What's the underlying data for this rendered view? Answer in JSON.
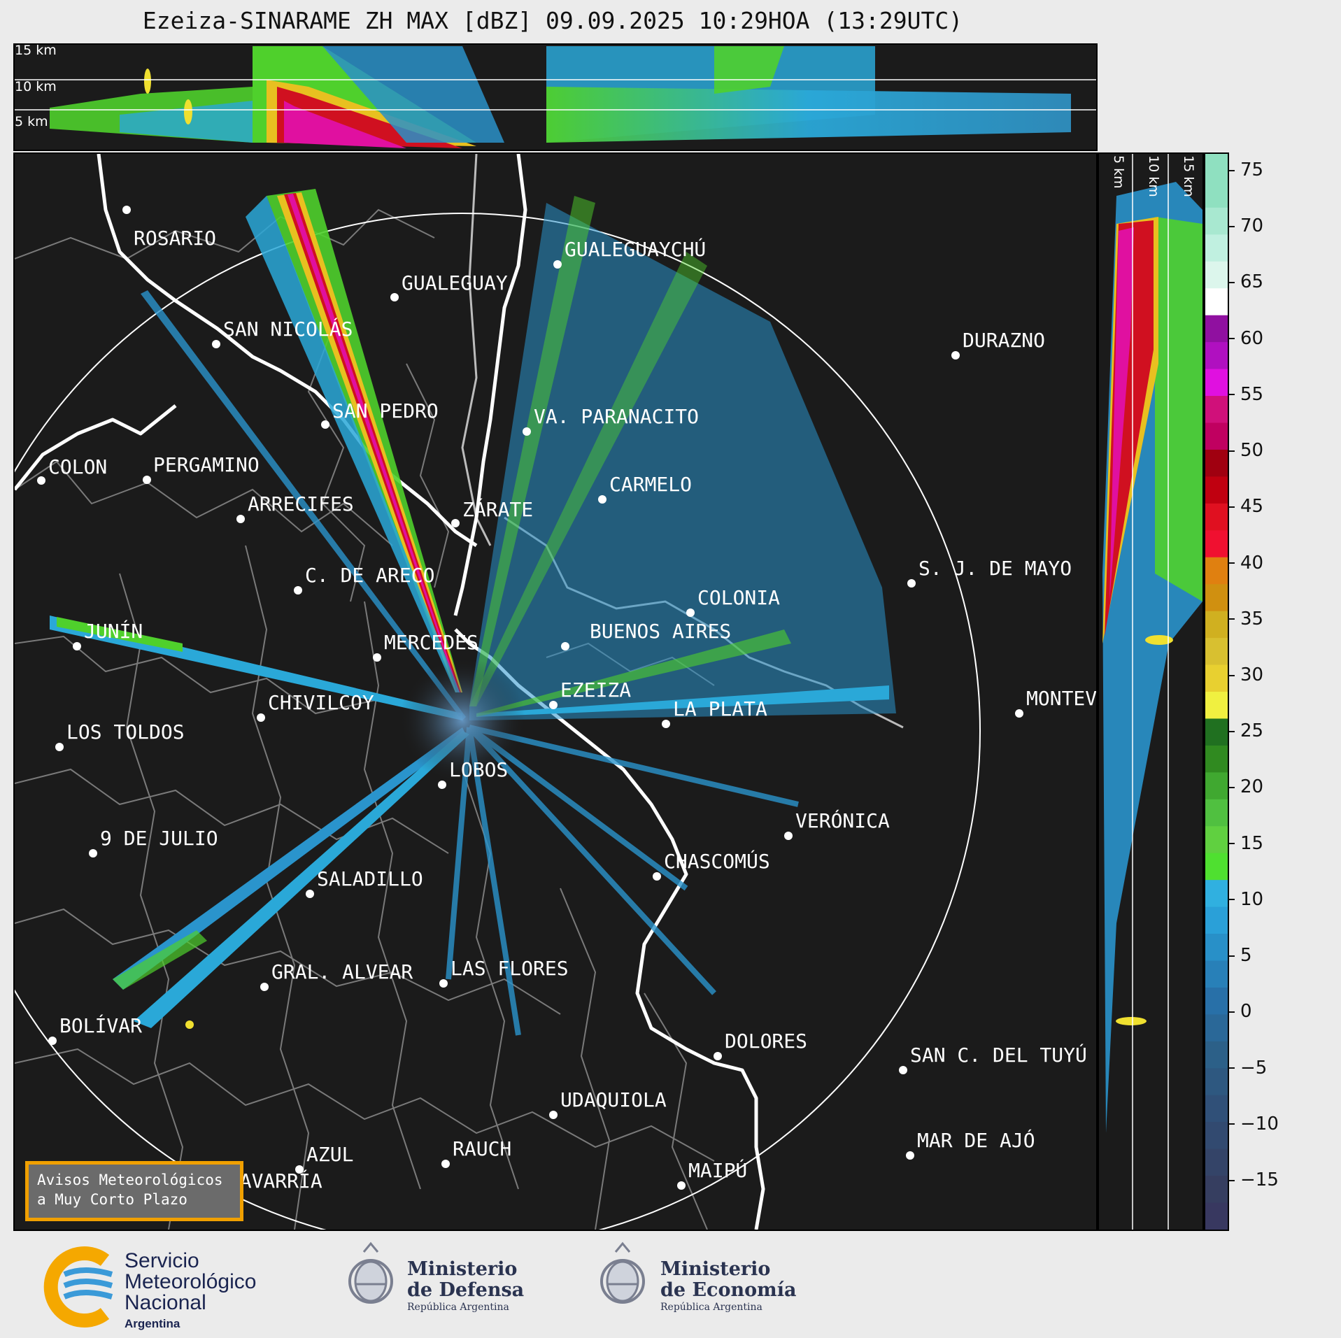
{
  "title": "Ezeiza-SINARAME ZH MAX [dBZ] 09.09.2025 10:29HOA (13:29UTC)",
  "top_panel": {
    "height_labels": [
      "15 km",
      "10 km",
      "5 km"
    ]
  },
  "side_panel": {
    "height_labels": [
      "5 km",
      "10 km",
      "15 km"
    ]
  },
  "colorbar": {
    "unit": "dBZ",
    "ticks": [
      "75",
      "70",
      "65",
      "60",
      "55",
      "50",
      "45",
      "40",
      "35",
      "30",
      "25",
      "20",
      "15",
      "10",
      "5",
      "0",
      "−5",
      "−10",
      "−15"
    ]
  },
  "cities": [
    {
      "name": "ROSARIO"
    },
    {
      "name": "GUALEGUAYCHÚ"
    },
    {
      "name": "GUALEGUAY"
    },
    {
      "name": "SAN NICOLÁS"
    },
    {
      "name": "DURAZNO"
    },
    {
      "name": "SAN PEDRO"
    },
    {
      "name": "VA. PARANACITO"
    },
    {
      "name": "COLON"
    },
    {
      "name": "PERGAMINO"
    },
    {
      "name": "CARMELO"
    },
    {
      "name": "ARRECIFES"
    },
    {
      "name": "ZÁRATE"
    },
    {
      "name": "S. J. DE MAYO"
    },
    {
      "name": "C. DE ARECO"
    },
    {
      "name": "COLONIA"
    },
    {
      "name": "JUNÍN"
    },
    {
      "name": "BUENOS AIRES"
    },
    {
      "name": "MERCEDES"
    },
    {
      "name": "EZEIZA"
    },
    {
      "name": "MONTEV"
    },
    {
      "name": "CHIVILCOY"
    },
    {
      "name": "LA PLATA"
    },
    {
      "name": "LOS TOLDOS"
    },
    {
      "name": "LOBOS"
    },
    {
      "name": "VERÓNICA"
    },
    {
      "name": "9 DE JULIO"
    },
    {
      "name": "CHASCOMÚS"
    },
    {
      "name": "SALADILLO"
    },
    {
      "name": "GRAL. ALVEAR"
    },
    {
      "name": "LAS FLORES"
    },
    {
      "name": "BOLÍVAR"
    },
    {
      "name": "DOLORES"
    },
    {
      "name": "SAN C. DEL TUYÚ"
    },
    {
      "name": "UDAQUIOLA"
    },
    {
      "name": "MAR DE AJÓ"
    },
    {
      "name": "AZUL"
    },
    {
      "name": "RAUCH"
    },
    {
      "name": "MAIPÚ"
    },
    {
      "name": "OLAVARRÍA"
    }
  ],
  "avisos": {
    "line1": "Avisos Meteorológicos",
    "line2": "a Muy Corto Plazo"
  },
  "footer": {
    "smn": {
      "line1": "Servicio",
      "line2": "Meteorológico",
      "line3": "Nacional",
      "line4": "Argentina"
    },
    "defensa": {
      "line1": "Ministerio",
      "line2": "de Defensa",
      "line3": "República Argentina"
    },
    "economia": {
      "line1": "Ministerio",
      "line2": "de Economía",
      "line3": "República Argentina"
    }
  }
}
